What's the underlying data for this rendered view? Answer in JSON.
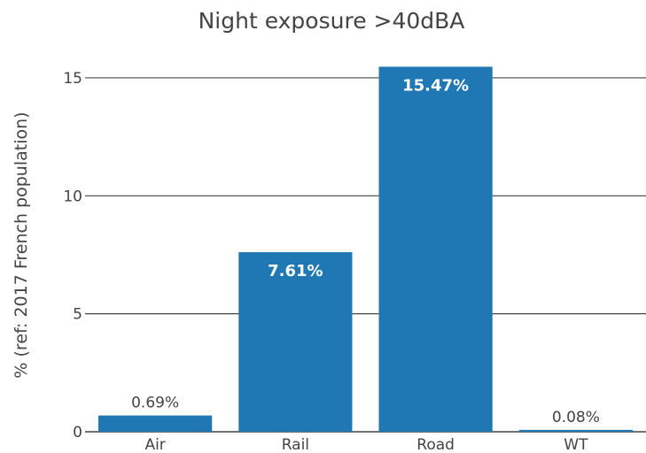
{
  "chart_data": {
    "type": "bar",
    "title": "Night exposure >40dBA",
    "xlabel": "",
    "ylabel": "% (ref: 2017 French population)",
    "categories": [
      "Air",
      "Rail",
      "Road",
      "WT"
    ],
    "values": [
      0.69,
      7.61,
      15.47,
      0.08
    ],
    "data_labels": [
      "0.69%",
      "7.61%",
      "15.47%",
      "0.08%"
    ],
    "yticks": [
      0,
      5,
      10,
      15
    ],
    "ylim": [
      0,
      16.2
    ],
    "grid": true,
    "bar_color": "#1f77b4",
    "grid_color": "#444444"
  }
}
